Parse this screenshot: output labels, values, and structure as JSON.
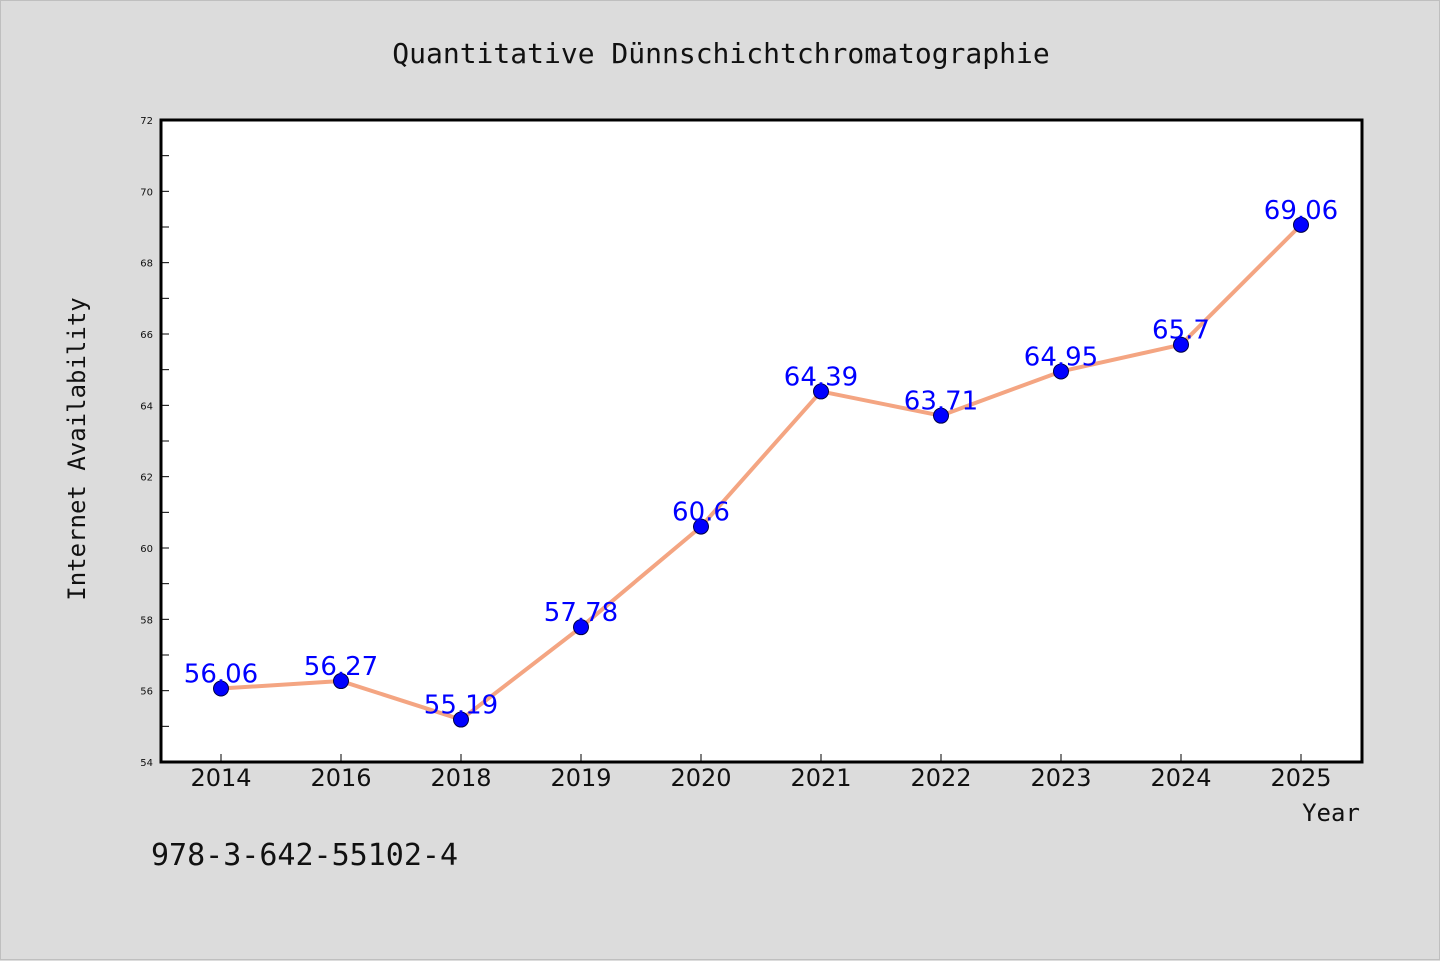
{
  "colors": {
    "background": "#dcdcdc",
    "plot_background": "#ffffff",
    "line": "#f4a582",
    "marker": "#0000ff",
    "data_label": "#0000ff"
  },
  "footer": {
    "isbn": "978-3-642-55102-4"
  },
  "chart_data": {
    "type": "line",
    "title": "Quantitative Dünnschichtchromatographie",
    "xlabel": "Year",
    "ylabel": "Internet Availability",
    "categories": [
      "2014",
      "2016",
      "2018",
      "2019",
      "2020",
      "2021",
      "2022",
      "2023",
      "2024",
      "2025"
    ],
    "series": [
      {
        "values": [
          56.06,
          56.27,
          55.19,
          57.78,
          60.6,
          64.39,
          63.71,
          64.95,
          65.7,
          69.06
        ],
        "labels": [
          "56.06",
          "56.27",
          "55.19",
          "57.78",
          "60.6",
          "64.39",
          "63.71",
          "64.95",
          "65.7",
          "69.06"
        ]
      }
    ],
    "ylim": [
      54,
      72
    ],
    "yticks": [
      54,
      56,
      58,
      60,
      62,
      64,
      66,
      68,
      70,
      72
    ],
    "grid": false,
    "legend": "none"
  }
}
